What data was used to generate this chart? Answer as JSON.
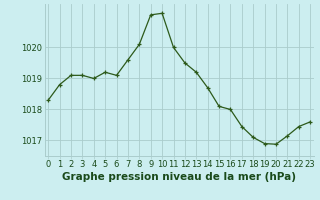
{
  "x": [
    0,
    1,
    2,
    3,
    4,
    5,
    6,
    7,
    8,
    9,
    10,
    11,
    12,
    13,
    14,
    15,
    16,
    17,
    18,
    19,
    20,
    21,
    22,
    23
  ],
  "y": [
    1018.3,
    1018.8,
    1019.1,
    1019.1,
    1019.0,
    1019.2,
    1019.1,
    1019.6,
    1020.1,
    1021.05,
    1021.1,
    1020.0,
    1019.5,
    1019.2,
    1018.7,
    1018.1,
    1018.0,
    1017.45,
    1017.1,
    1016.9,
    1016.88,
    1017.15,
    1017.45,
    1017.6
  ],
  "line_color": "#2d5a1b",
  "marker_color": "#2d5a1b",
  "bg_color": "#cceef0",
  "grid_color": "#aacccc",
  "title": "Graphe pression niveau de la mer (hPa)",
  "xlabel_ticks": [
    "0",
    "1",
    "2",
    "3",
    "4",
    "5",
    "6",
    "7",
    "8",
    "9",
    "10",
    "11",
    "12",
    "13",
    "14",
    "15",
    "16",
    "17",
    "18",
    "19",
    "20",
    "21",
    "22",
    "23"
  ],
  "yticks": [
    1017,
    1018,
    1019,
    1020
  ],
  "ylim": [
    1016.5,
    1021.4
  ],
  "xlim": [
    -0.3,
    23.3
  ],
  "title_fontsize": 7.5,
  "tick_fontsize": 6.0,
  "label_color": "#1a4a1a"
}
